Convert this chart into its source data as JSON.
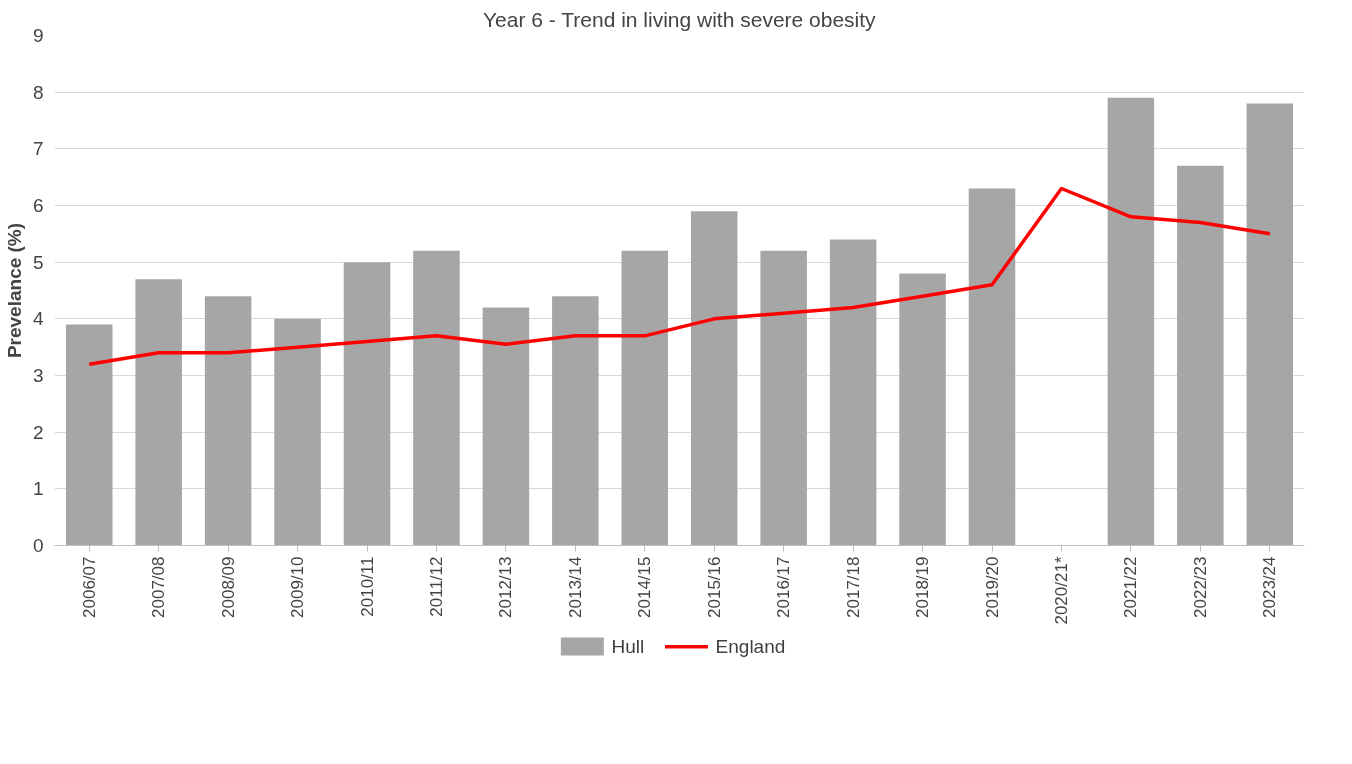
{
  "chart_data": {
    "type": "bar",
    "title": "Year 6 - Trend in living with severe obesity",
    "ylabel": "Prevelance (%)",
    "categories": [
      "2006/07",
      "2007/08",
      "2008/09",
      "2009/10",
      "2010/11",
      "2011/12",
      "2012/13",
      "2013/14",
      "2014/15",
      "2015/16",
      "2016/17",
      "2017/18",
      "2018/19",
      "2019/20",
      "2020/21*",
      "2021/22",
      "2022/23",
      "2023/24"
    ],
    "series": [
      {
        "name": "Hull",
        "color": "#a6a6a6",
        "values": [
          3.9,
          4.7,
          4.4,
          4.0,
          5.0,
          5.2,
          4.2,
          4.4,
          5.2,
          5.9,
          5.2,
          5.4,
          4.8,
          6.3,
          null,
          7.9,
          6.7,
          7.8
        ]
      },
      {
        "name": "England",
        "type": "line",
        "color": "#ff0000",
        "values": [
          3.2,
          3.4,
          3.4,
          3.5,
          3.6,
          3.7,
          3.55,
          3.7,
          3.7,
          4.0,
          4.1,
          4.2,
          4.4,
          4.6,
          6.3,
          5.8,
          5.7,
          5.5
        ]
      }
    ],
    "ylim": [
      0,
      9
    ],
    "yticks": [
      0,
      1,
      2,
      3,
      4,
      5,
      6,
      7,
      8,
      9
    ],
    "grid": "y",
    "legend": "bottom"
  }
}
